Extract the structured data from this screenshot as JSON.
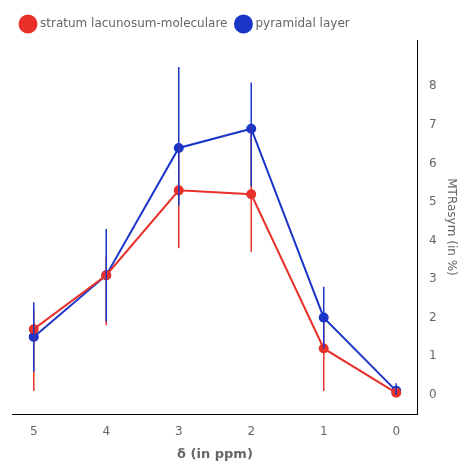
{
  "chart_data": {
    "type": "line",
    "x": [
      5,
      4,
      3,
      2,
      1,
      0
    ],
    "series": [
      {
        "name": "stratum lacunosum-moleculare",
        "color": "#e8312a",
        "marker": "circle",
        "values": [
          1.7,
          3.1,
          5.3,
          5.2,
          1.2,
          0.05
        ],
        "yerr_minus": [
          1.6,
          1.3,
          1.5,
          1.5,
          1.1,
          0.05
        ],
        "yerr_plus": [
          0.5,
          0.5,
          1.2,
          1.8,
          0.7,
          0.1
        ]
      },
      {
        "name": "pyramidal layer",
        "color": "#1a35c8",
        "marker": "circle",
        "values": [
          1.5,
          3.1,
          6.4,
          6.9,
          2.0,
          0.1
        ],
        "yerr_minus": [
          0.9,
          1.2,
          1.5,
          1.5,
          0.8,
          0.1
        ],
        "yerr_plus": [
          0.9,
          1.2,
          2.1,
          1.2,
          0.8,
          0.2
        ]
      }
    ],
    "xlabel": "δ (in ppm)",
    "ylabel": "MTRasym (in %)",
    "xlim": [
      5.3,
      -0.3
    ],
    "ylim": [
      -0.5,
      9.2
    ],
    "xticks": [
      5,
      4,
      3,
      2,
      1,
      0
    ],
    "yticks": [
      0,
      1,
      2,
      3,
      4,
      5,
      6,
      7,
      8
    ],
    "grid": false,
    "legend": "upper left"
  }
}
